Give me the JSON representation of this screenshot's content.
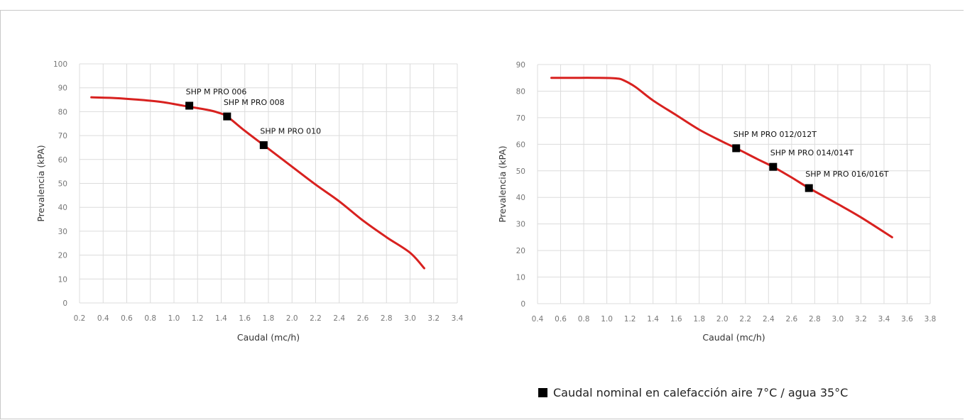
{
  "chart_data": [
    {
      "type": "line",
      "xlabel": "Caudal (mc/h)",
      "ylabel": "Prevalencia (kPA)",
      "xlim": [
        0.2,
        3.4
      ],
      "ylim": [
        0,
        100
      ],
      "xticks": [
        "0.2",
        "0.4",
        "0.6",
        "0.8",
        "1.0",
        "1.2",
        "1.4",
        "1.6",
        "1.8",
        "2.0",
        "2.2",
        "2.4",
        "2.6",
        "2.8",
        "3.0",
        "3.2",
        "3.4"
      ],
      "yticks": [
        "0",
        "10",
        "20",
        "30",
        "40",
        "50",
        "60",
        "70",
        "80",
        "90",
        "100"
      ],
      "grid": true,
      "series": [
        {
          "color": "#d8211f",
          "x": [
            0.3,
            0.5,
            0.7,
            0.9,
            1.1,
            1.3,
            1.38,
            1.45,
            1.6,
            1.76,
            2.0,
            2.2,
            2.4,
            2.6,
            2.8,
            3.0,
            3.12
          ],
          "y": [
            86,
            85.7,
            85,
            84,
            82.3,
            80.6,
            79.5,
            78,
            72,
            66,
            57,
            49.5,
            42.5,
            34.5,
            27.5,
            21,
            14.5
          ]
        }
      ],
      "points": [
        {
          "label": "SHP M PRO 006",
          "x": 1.13,
          "y": 82.5
        },
        {
          "label": "SHP M PRO 008",
          "x": 1.45,
          "y": 78
        },
        {
          "label": "SHP M PRO 010",
          "x": 1.76,
          "y": 66
        }
      ]
    },
    {
      "type": "line",
      "xlabel": "Caudal (mc/h)",
      "ylabel": "Prevalencia (kPA)",
      "xlim": [
        0.4,
        3.8
      ],
      "ylim": [
        0,
        90
      ],
      "xticks": [
        "0.4",
        "0.6",
        "0.8",
        "1.0",
        "1.2",
        "1.4",
        "1.6",
        "1.8",
        "2.0",
        "2.2",
        "2.4",
        "2.6",
        "2.8",
        "3.0",
        "3.2",
        "3.4",
        "3.6",
        "3.8"
      ],
      "yticks": [
        "0",
        "10",
        "20",
        "30",
        "40",
        "50",
        "60",
        "70",
        "80",
        "90"
      ],
      "grid": true,
      "series": [
        {
          "color": "#d8211f",
          "x": [
            0.52,
            0.7,
            0.9,
            1.08,
            1.15,
            1.25,
            1.4,
            1.6,
            1.8,
            2.0,
            2.12,
            2.3,
            2.44,
            2.6,
            2.75,
            3.0,
            3.2,
            3.47
          ],
          "y": [
            85,
            85,
            85,
            84.8,
            84,
            81.5,
            76.5,
            71,
            65.5,
            61,
            58.5,
            54.5,
            51.5,
            47.5,
            43.5,
            37.5,
            32.5,
            25
          ]
        }
      ],
      "points": [
        {
          "label": "SHP M PRO 012/012T",
          "x": 2.12,
          "y": 58.5
        },
        {
          "label": "SHP M PRO 014/014T",
          "x": 2.44,
          "y": 51.5
        },
        {
          "label": "SHP M PRO 016/016T",
          "x": 2.75,
          "y": 43.5
        }
      ]
    }
  ],
  "legend": {
    "text": "Caudal nominal en calefacción aire 7°C / agua 35°C"
  }
}
